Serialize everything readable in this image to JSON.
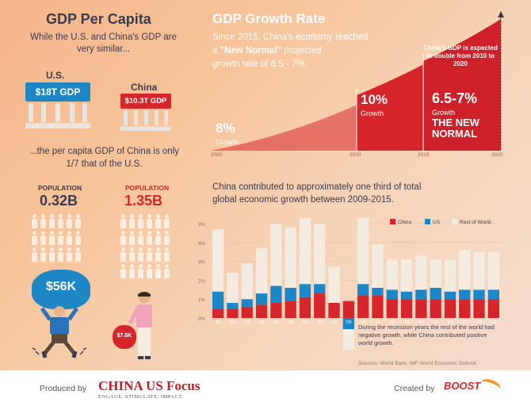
{
  "left": {
    "title": "GDP Per Capita",
    "intro": "While the U.S. and China's GDP are very similar...",
    "us_label": "U.S.",
    "us_gdp": "$18T GDP",
    "china_label": "China",
    "china_gdp": "$10.3T GDP",
    "per_capita_text": "...the per capita GDP of China is only 1/7 that of the U.S.",
    "us_pop_label": "POPULATION",
    "us_pop_value": "0.32B",
    "china_pop_label": "POPULATION",
    "china_pop_value": "1.35B",
    "us_income": "$56K",
    "china_income": "$7.6K"
  },
  "growth": {
    "title": "GDP Growth Rate",
    "desc_1": "Since 2015, China's economy reached",
    "desc_2_pre": "a ",
    "desc_2_bold": "\"New Normal\"",
    "desc_2_post": " projected",
    "desc_3": "growth rate of 6.5 - 7%.",
    "note": "China's GDP is expected to double from 2010 to 2020",
    "seg1_value": "8%",
    "seg1_label": "Growth",
    "seg2_value": "10%",
    "seg2_label": "Growth",
    "seg3_value": "6.5-7%",
    "seg3_label": "Growth",
    "seg3_sub_1": "THE NEW",
    "seg3_sub_2": "NORMAL",
    "years": [
      "2000",
      "2010",
      "2015",
      "2020"
    ]
  },
  "contrib": {
    "text_1": "China contributed to approximately one third of total",
    "text_2": "global economic growth between 2009-2015.",
    "annotation": "During the recession years the rest of the world had negative growth, while China contributed positive world growth.",
    "sources": "Sources: World Bank, IMF World Economic Outlook"
  },
  "footer": {
    "produced_by": "Produced by",
    "brand": "CHINA US Focus",
    "tagline": "ENGAGE. STIMULATE. IMPACT.",
    "created_by": "Created by",
    "creator": "BOOST"
  },
  "colors": {
    "china": "#d7262b",
    "us": "#1b86c8",
    "rest": "#f4ece0",
    "accent": "#cf2129"
  },
  "chart_data": {
    "type": "bar",
    "stacked": true,
    "categories": [
      "'00",
      "'01",
      "'02",
      "'03",
      "'04",
      "'05",
      "'06",
      "'07",
      "'08",
      "'09",
      "'10",
      "'11",
      "'12",
      "'13",
      "'14",
      "'15",
      "'16",
      "'17",
      "'18",
      "'19"
    ],
    "ylim": [
      -2,
      6
    ],
    "yticks": [
      "5%",
      "4%",
      "3%",
      "2%",
      "1%",
      "0%"
    ],
    "legend": [
      "China",
      "US",
      "Rest of World"
    ],
    "legend_position": "top-right",
    "series": [
      {
        "name": "China",
        "values": [
          0.5,
          0.5,
          0.6,
          0.7,
          0.8,
          0.9,
          1.1,
          1.3,
          0.8,
          0.9,
          1.2,
          1.2,
          1.0,
          1.0,
          1.0,
          1.0,
          1.0,
          1.0,
          1.0,
          1.0
        ]
      },
      {
        "name": "US",
        "values": [
          0.9,
          0.3,
          0.4,
          0.6,
          0.9,
          0.7,
          0.7,
          0.5,
          0.0,
          -0.6,
          0.6,
          0.4,
          0.5,
          0.4,
          0.5,
          0.6,
          0.4,
          0.5,
          0.5,
          0.5
        ]
      },
      {
        "name": "Rest of World",
        "values": [
          3.3,
          1.6,
          1.9,
          2.4,
          3.3,
          3.2,
          3.5,
          3.2,
          1.9,
          -1.1,
          3.5,
          2.3,
          1.6,
          1.7,
          1.8,
          1.5,
          1.7,
          2.1,
          2.0,
          2.0
        ]
      }
    ]
  }
}
